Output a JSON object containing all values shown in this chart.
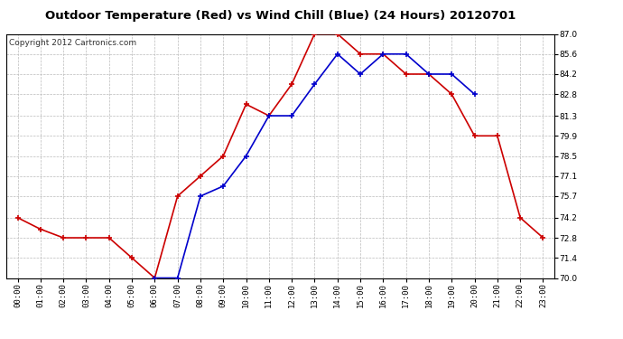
{
  "title": "Outdoor Temperature (Red) vs Wind Chill (Blue) (24 Hours) 20120701",
  "copyright": "Copyright 2012 Cartronics.com",
  "hours": [
    0,
    1,
    2,
    3,
    4,
    5,
    6,
    7,
    8,
    9,
    10,
    11,
    12,
    13,
    14,
    15,
    16,
    17,
    18,
    19,
    20,
    21,
    22,
    23
  ],
  "red_temp": [
    74.2,
    73.4,
    72.8,
    72.8,
    72.8,
    71.4,
    70.0,
    75.7,
    77.1,
    78.5,
    82.1,
    81.3,
    83.5,
    87.0,
    87.0,
    85.6,
    85.6,
    84.2,
    84.2,
    82.8,
    79.9,
    79.9,
    74.2,
    72.8
  ],
  "blue_temp": [
    null,
    null,
    null,
    null,
    null,
    null,
    70.0,
    70.0,
    75.7,
    76.4,
    78.5,
    81.3,
    81.3,
    83.5,
    85.6,
    84.2,
    85.6,
    85.6,
    84.2,
    84.2,
    82.8,
    null,
    null,
    null
  ],
  "ylim": [
    70.0,
    87.0
  ],
  "yticks": [
    70.0,
    71.4,
    72.8,
    74.2,
    75.7,
    77.1,
    78.5,
    79.9,
    81.3,
    82.8,
    84.2,
    85.6,
    87.0
  ],
  "red_color": "#cc0000",
  "blue_color": "#0000cc",
  "bg_color": "#ffffff",
  "grid_color": "#bbbbbb",
  "title_fontsize": 9.5,
  "copyright_fontsize": 6.5,
  "tick_fontsize": 6.5
}
